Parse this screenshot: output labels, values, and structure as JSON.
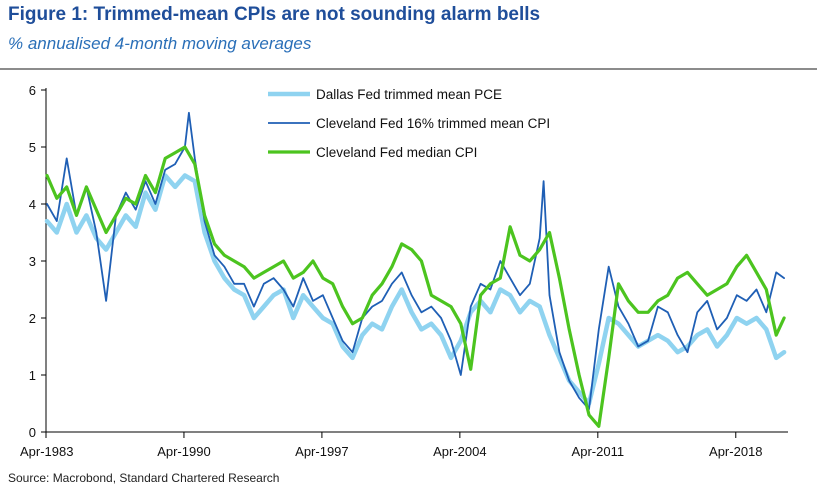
{
  "figure": {
    "title": "Figure 1: Trimmed-mean CPIs are not sounding alarm bells",
    "subtitle": "% annualised 4-month moving averages",
    "source": "Source: Macrobond, Standard Chartered Research"
  },
  "chart_data": {
    "type": "line",
    "title": "Figure 1: Trimmed-mean CPIs are not sounding alarm bells",
    "subtitle": "% annualised 4-month moving averages",
    "xlabel": "",
    "ylabel": "",
    "xlim": [
      1983.25,
      2020.9
    ],
    "ylim": [
      0,
      6
    ],
    "yticks": [
      0,
      1,
      2,
      3,
      4,
      5,
      6
    ],
    "xticks": [
      {
        "value": 1983.25,
        "label": "Apr-1983"
      },
      {
        "value": 1990.25,
        "label": "Apr-1990"
      },
      {
        "value": 1997.25,
        "label": "Apr-1997"
      },
      {
        "value": 2004.25,
        "label": "Apr-2004"
      },
      {
        "value": 2011.25,
        "label": "Apr-2011"
      },
      {
        "value": 2018.25,
        "label": "Apr-2018"
      }
    ],
    "legend_position": "top-center",
    "series": [
      {
        "name": "Dallas Fed trimmed mean PCE",
        "color": "#8fd3f0",
        "x": [
          1983.3,
          1983.8,
          1984.3,
          1984.8,
          1985.3,
          1985.8,
          1986.3,
          1986.8,
          1987.3,
          1987.8,
          1988.3,
          1988.8,
          1989.3,
          1989.8,
          1990.3,
          1990.8,
          1991.3,
          1991.8,
          1992.3,
          1992.8,
          1993.3,
          1993.8,
          1994.3,
          1994.8,
          1995.3,
          1995.8,
          1996.3,
          1996.8,
          1997.3,
          1997.8,
          1998.3,
          1998.8,
          1999.3,
          1999.8,
          2000.3,
          2000.8,
          2001.3,
          2001.8,
          2002.3,
          2002.8,
          2003.3,
          2003.8,
          2004.3,
          2004.8,
          2005.3,
          2005.8,
          2006.3,
          2006.8,
          2007.3,
          2007.8,
          2008.3,
          2008.8,
          2009.3,
          2009.8,
          2010.3,
          2010.8,
          2011.3,
          2011.8,
          2012.3,
          2012.8,
          2013.3,
          2013.8,
          2014.3,
          2014.8,
          2015.3,
          2015.8,
          2016.3,
          2016.8,
          2017.3,
          2017.8,
          2018.3,
          2018.8,
          2019.3,
          2019.8,
          2020.3,
          2020.7
        ],
        "y": [
          3.7,
          3.5,
          4.0,
          3.5,
          3.8,
          3.4,
          3.2,
          3.5,
          3.8,
          3.6,
          4.2,
          3.9,
          4.5,
          4.3,
          4.5,
          4.4,
          3.5,
          3.0,
          2.7,
          2.5,
          2.4,
          2.0,
          2.2,
          2.4,
          2.5,
          2.0,
          2.4,
          2.2,
          2.0,
          1.9,
          1.5,
          1.3,
          1.7,
          1.9,
          1.8,
          2.2,
          2.5,
          2.1,
          1.8,
          1.9,
          1.7,
          1.3,
          1.6,
          2.1,
          2.3,
          2.1,
          2.5,
          2.4,
          2.1,
          2.3,
          2.2,
          1.7,
          1.3,
          0.9,
          0.7,
          0.5,
          1.2,
          2.0,
          1.9,
          1.7,
          1.5,
          1.6,
          1.7,
          1.6,
          1.4,
          1.5,
          1.7,
          1.8,
          1.5,
          1.7,
          2.0,
          1.9,
          2.0,
          1.8,
          1.3,
          1.4
        ]
      },
      {
        "name": "Cleveland Fed 16% trimmed mean CPI",
        "color": "#1f5fb5",
        "x": [
          1983.3,
          1983.8,
          1984.3,
          1984.8,
          1985.3,
          1985.8,
          1986.3,
          1986.8,
          1987.3,
          1987.8,
          1988.3,
          1988.8,
          1989.3,
          1989.8,
          1990.3,
          1990.5,
          1990.8,
          1991.3,
          1991.8,
          1992.3,
          1992.8,
          1993.3,
          1993.8,
          1994.3,
          1994.8,
          1995.3,
          1995.8,
          1996.3,
          1996.8,
          1997.3,
          1997.8,
          1998.3,
          1998.8,
          1999.3,
          1999.8,
          2000.3,
          2000.8,
          2001.3,
          2001.8,
          2002.3,
          2002.8,
          2003.3,
          2003.8,
          2004.3,
          2004.8,
          2005.3,
          2005.8,
          2006.3,
          2006.8,
          2007.3,
          2007.8,
          2008.3,
          2008.5,
          2008.8,
          2009.3,
          2009.8,
          2010.3,
          2010.8,
          2011.3,
          2011.8,
          2012.3,
          2012.8,
          2013.3,
          2013.8,
          2014.3,
          2014.8,
          2015.3,
          2015.8,
          2016.3,
          2016.8,
          2017.3,
          2017.8,
          2018.3,
          2018.8,
          2019.3,
          2019.8,
          2020.3,
          2020.7
        ],
        "y": [
          4.0,
          3.7,
          4.8,
          3.8,
          4.3,
          3.5,
          2.3,
          3.8,
          4.2,
          3.9,
          4.4,
          4.0,
          4.6,
          4.7,
          5.0,
          5.6,
          4.8,
          3.7,
          3.1,
          2.9,
          2.6,
          2.6,
          2.2,
          2.6,
          2.7,
          2.5,
          2.2,
          2.7,
          2.3,
          2.4,
          2.0,
          1.6,
          1.4,
          2.0,
          2.2,
          2.3,
          2.6,
          2.8,
          2.4,
          2.1,
          2.2,
          2.0,
          1.6,
          1.0,
          2.2,
          2.6,
          2.5,
          3.0,
          2.7,
          2.4,
          2.6,
          3.4,
          4.4,
          2.4,
          1.4,
          0.9,
          0.6,
          0.4,
          1.8,
          2.9,
          2.2,
          1.9,
          1.5,
          1.6,
          2.2,
          2.1,
          1.7,
          1.4,
          2.1,
          2.3,
          1.8,
          2.0,
          2.4,
          2.3,
          2.5,
          2.1,
          2.8,
          2.7
        ]
      },
      {
        "name": "Cleveland Fed median CPI",
        "color": "#4cc41f",
        "x": [
          1983.3,
          1983.8,
          1984.3,
          1984.8,
          1985.3,
          1985.8,
          1986.3,
          1986.8,
          1987.3,
          1987.8,
          1988.3,
          1988.8,
          1989.3,
          1989.8,
          1990.3,
          1990.8,
          1991.3,
          1991.8,
          1992.3,
          1992.8,
          1993.3,
          1993.8,
          1994.3,
          1994.8,
          1995.3,
          1995.8,
          1996.3,
          1996.8,
          1997.3,
          1997.8,
          1998.3,
          1998.8,
          1999.3,
          1999.8,
          2000.3,
          2000.8,
          2001.3,
          2001.8,
          2002.3,
          2002.8,
          2003.3,
          2003.8,
          2004.3,
          2004.8,
          2005.3,
          2005.8,
          2006.3,
          2006.8,
          2007.3,
          2007.8,
          2008.3,
          2008.8,
          2009.3,
          2009.8,
          2010.3,
          2010.8,
          2011.3,
          2011.8,
          2012.3,
          2012.8,
          2013.3,
          2013.8,
          2014.3,
          2014.8,
          2015.3,
          2015.8,
          2016.3,
          2016.8,
          2017.3,
          2017.8,
          2018.3,
          2018.8,
          2019.3,
          2019.8,
          2020.3,
          2020.7
        ],
        "y": [
          4.5,
          4.1,
          4.3,
          3.8,
          4.3,
          3.9,
          3.5,
          3.8,
          4.1,
          4.0,
          4.5,
          4.2,
          4.8,
          4.9,
          5.0,
          4.7,
          3.8,
          3.3,
          3.1,
          3.0,
          2.9,
          2.7,
          2.8,
          2.9,
          3.0,
          2.7,
          2.8,
          3.0,
          2.7,
          2.6,
          2.2,
          1.9,
          2.0,
          2.4,
          2.6,
          2.9,
          3.3,
          3.2,
          3.0,
          2.4,
          2.3,
          2.2,
          1.9,
          1.1,
          2.4,
          2.6,
          2.7,
          3.6,
          3.1,
          3.0,
          3.2,
          3.5,
          2.7,
          1.8,
          1.0,
          0.3,
          0.1,
          1.3,
          2.6,
          2.3,
          2.1,
          2.1,
          2.3,
          2.4,
          2.7,
          2.8,
          2.6,
          2.4,
          2.5,
          2.6,
          2.9,
          3.1,
          2.8,
          2.5,
          1.7,
          2.0
        ]
      }
    ]
  }
}
